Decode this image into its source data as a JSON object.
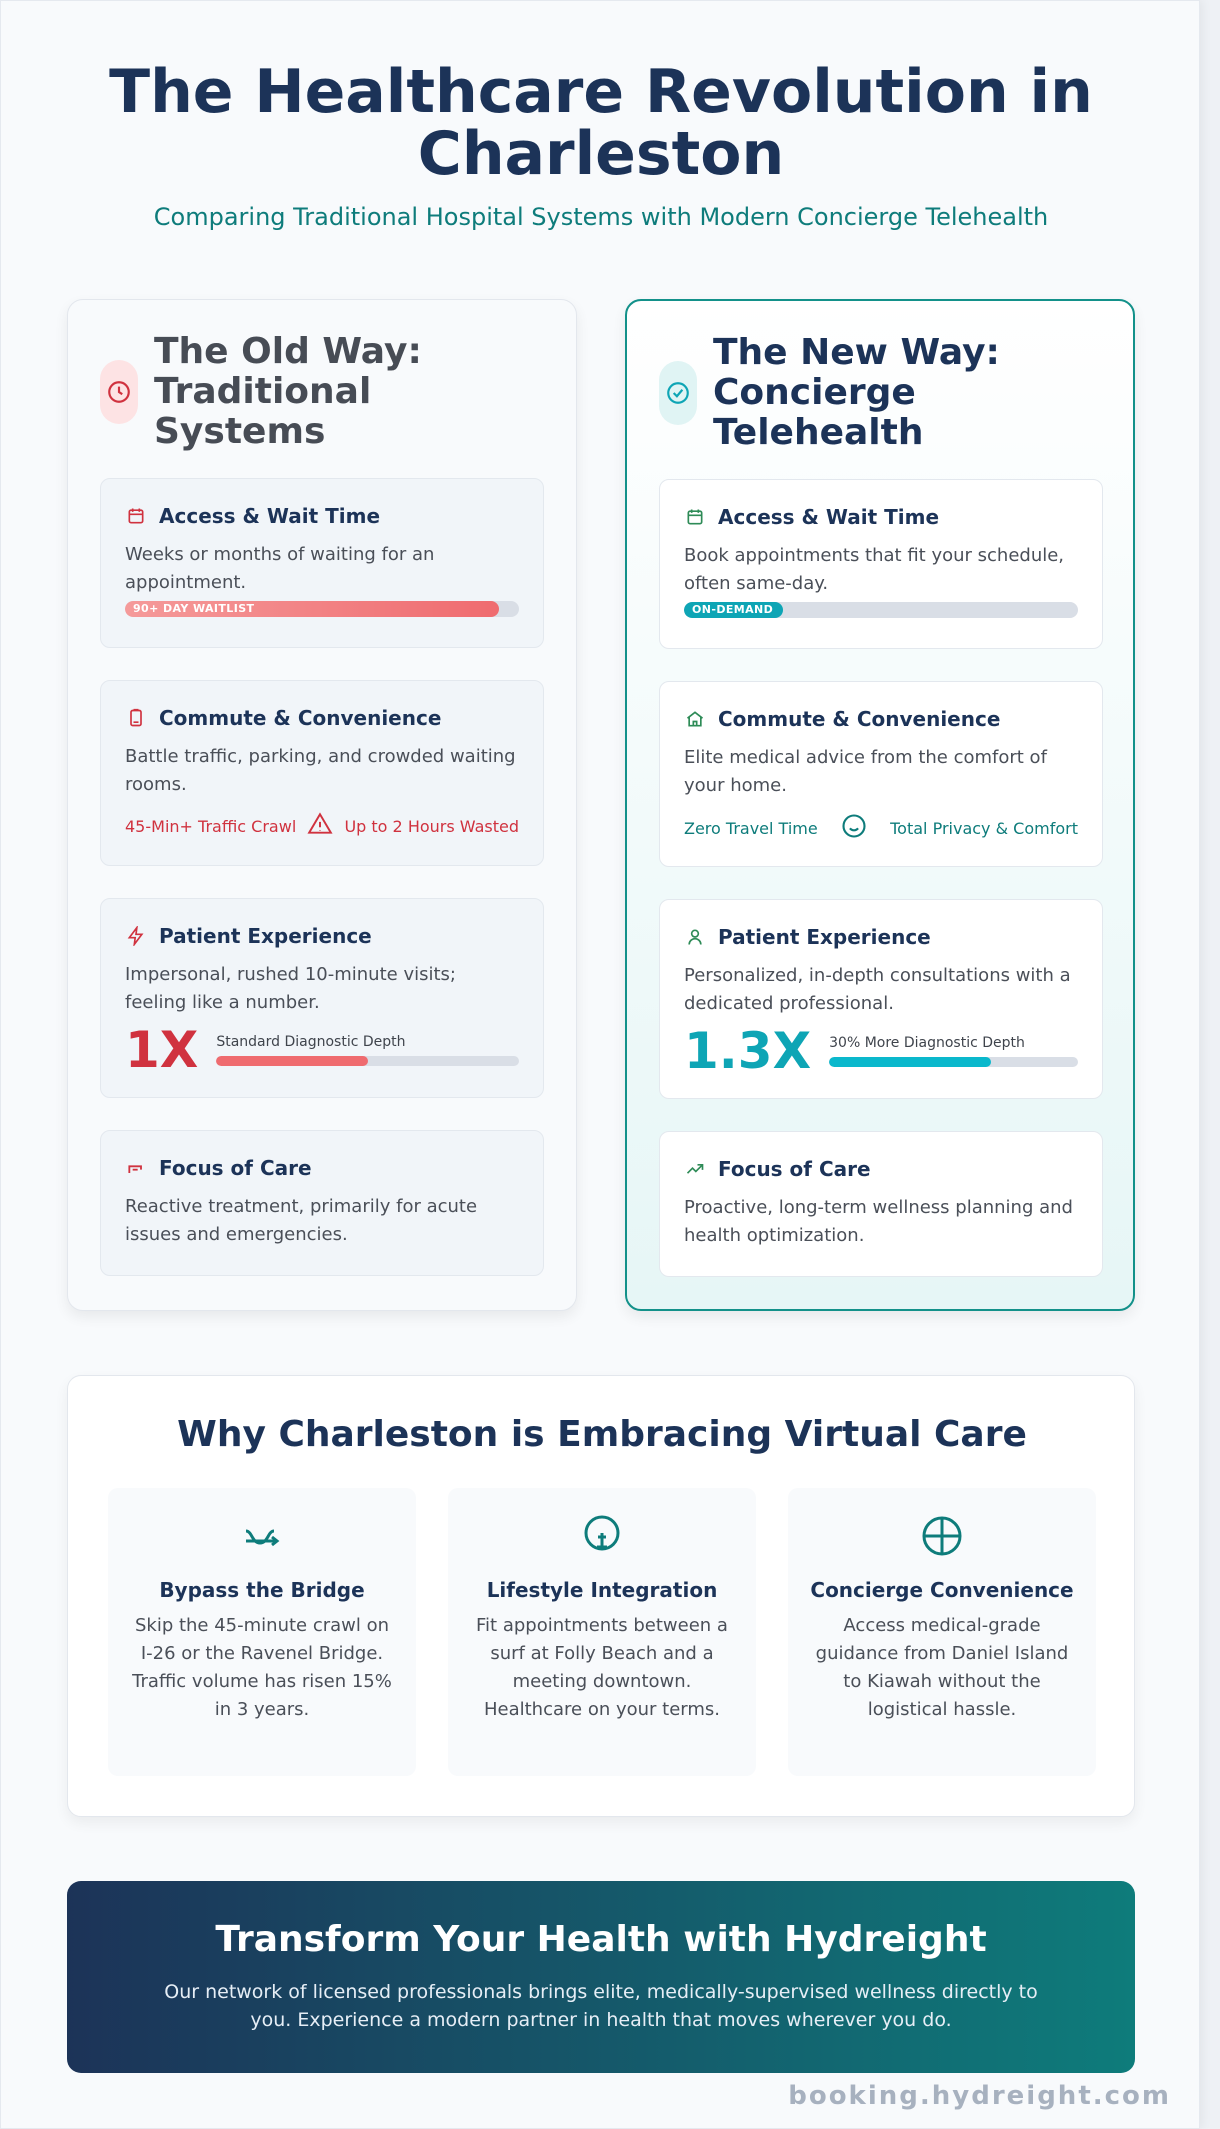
{
  "header": {
    "title_line1": "The Healthcare Revolution in",
    "title_line2": "Charleston",
    "subtitle": "Comparing Traditional Hospital Systems with Modern Concierge Telehealth"
  },
  "old_way": {
    "heading": "The Old Way: Traditional Systems",
    "icon": "clock-icon",
    "accent": "#d0323f",
    "cards": {
      "access": {
        "title": "Access & Wait Time",
        "text": "Weeks or months of waiting for an appointment.",
        "bar_label": "90+ DAY WAITLIST",
        "bar_fill": 0.95
      },
      "commute": {
        "title": "Commute & Convenience",
        "text": "Battle traffic, parking, and crowded waiting rooms.",
        "chip_left": "45-Min+ Traffic Crawl",
        "chip_right": "Up to 2 Hours Wasted"
      },
      "experience": {
        "title": "Patient Experience",
        "text": "Impersonal, rushed 10-minute visits; feeling like a number.",
        "big": "1X",
        "metric_label": "Standard Diagnostic Depth",
        "metric_fill": 0.5
      },
      "focus": {
        "title": "Focus of Care",
        "text": "Reactive treatment, primarily for acute issues and emergencies."
      }
    }
  },
  "new_way": {
    "heading": "The New Way: Concierge Telehealth",
    "icon": "check-circle-icon",
    "accent": "#0ea5b5",
    "cards": {
      "access": {
        "title": "Access & Wait Time",
        "text": "Book appointments that fit your schedule, often same-day.",
        "bar_label": "ON-DEMAND",
        "bar_fill": 0.25
      },
      "commute": {
        "title": "Commute & Convenience",
        "text": "Elite medical advice from the comfort of your home.",
        "chip_left": "Zero Travel Time",
        "chip_right": "Total Privacy & Comfort"
      },
      "experience": {
        "title": "Patient Experience",
        "text": "Personalized, in-depth consultations with a dedicated professional.",
        "big": "1.3X",
        "metric_label": "30% More Diagnostic Depth",
        "metric_fill": 0.65
      },
      "focus": {
        "title": "Focus of Care",
        "text": "Proactive, long-term wellness planning and health optimization."
      }
    }
  },
  "why": {
    "heading": "Why Charleston is Embracing Virtual Care",
    "tiles": [
      {
        "title": "Bypass the Bridge",
        "text": "Skip the 45-minute crawl on I-26 or the Ravenel Bridge. Traffic volume has risen 15% in 3 years.",
        "icon": "route-icon"
      },
      {
        "title": "Lifestyle Integration",
        "text": "Fit appointments between a surf at Folly Beach and a meeting downtown. Healthcare on your terms.",
        "icon": "lightbulb-icon"
      },
      {
        "title": "Concierge Convenience",
        "text": "Access medical-grade guidance from Daniel Island to Kiawah without the logistical hassle.",
        "icon": "compass-icon"
      }
    ]
  },
  "cta": {
    "heading": "Transform Your Health with Hydreight",
    "text": "Our network of licensed professionals brings elite, medically-supervised wellness directly to you. Experience a modern partner in health that moves wherever you do."
  },
  "footer": {
    "url": "booking.hydreight.com"
  },
  "colors": {
    "navy": "#1c3358",
    "teal": "#0e7c7b",
    "red": "#d0323f",
    "cyan": "#0ea5b5",
    "green": "#2e8b57"
  }
}
